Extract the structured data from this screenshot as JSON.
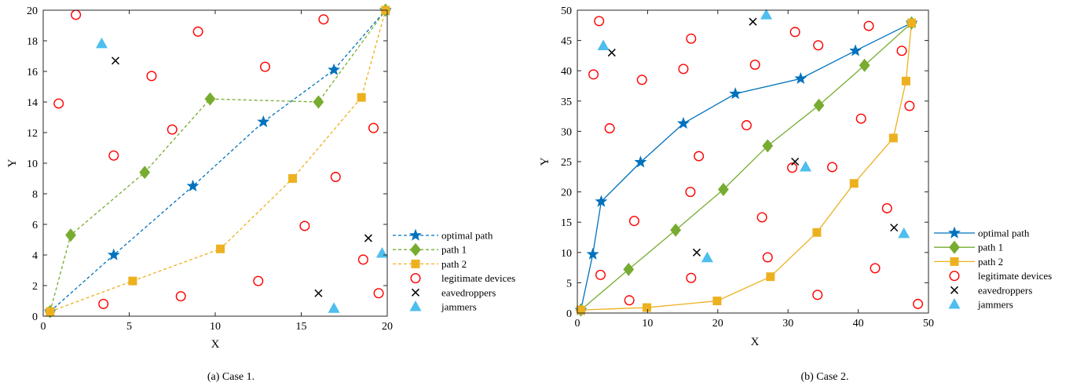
{
  "colors": {
    "optimal": "#0072BD",
    "path1": "#77AC30",
    "path2": "#EDB120",
    "legit": "#FF0000",
    "eaves": "#000000",
    "jammer": "#4DBEEE"
  },
  "chart_data": [
    {
      "type": "scatter",
      "caption": "(a) Case 1.",
      "xlabel": "X",
      "ylabel": "Y",
      "xlim": [
        0,
        20
      ],
      "ylim": [
        0,
        20
      ],
      "xticks": [
        0,
        5,
        10,
        15,
        20
      ],
      "yticks": [
        0,
        2,
        4,
        6,
        8,
        10,
        12,
        14,
        16,
        18,
        20
      ],
      "grid": false,
      "legend_position": "bottom-right, outside",
      "line_style": "dashed paths",
      "series": [
        {
          "name": "optimal path",
          "marker": "star",
          "x": [
            0.4,
            4.1,
            8.7,
            12.8,
            16.9,
            19.9
          ],
          "y": [
            0.3,
            4.0,
            8.5,
            12.7,
            16.1,
            20.0
          ]
        },
        {
          "name": "path 1",
          "marker": "diamond",
          "x": [
            0.4,
            1.6,
            5.9,
            9.7,
            16.0,
            19.9
          ],
          "y": [
            0.3,
            5.3,
            9.4,
            14.2,
            14.0,
            20.0
          ]
        },
        {
          "name": "path 2",
          "marker": "square",
          "x": [
            0.4,
            5.2,
            10.3,
            14.5,
            18.5,
            19.9
          ],
          "y": [
            0.3,
            2.3,
            4.4,
            9.0,
            14.3,
            20.0
          ]
        },
        {
          "name": "legitimate devices",
          "marker": "circle",
          "x": [
            0.9,
            1.9,
            3.5,
            4.1,
            6.3,
            7.5,
            8.0,
            9.0,
            12.5,
            12.9,
            15.2,
            16.3,
            17.0,
            18.6,
            19.2,
            19.5
          ],
          "y": [
            13.9,
            19.7,
            0.8,
            10.5,
            15.7,
            12.2,
            1.3,
            18.6,
            2.3,
            16.3,
            5.9,
            19.4,
            9.1,
            3.7,
            12.3,
            1.5
          ]
        },
        {
          "name": "eavedroppers",
          "marker": "x",
          "x": [
            4.2,
            16.0,
            18.9
          ],
          "y": [
            16.7,
            1.5,
            5.1
          ]
        },
        {
          "name": "jammers",
          "marker": "triangle",
          "x": [
            3.4,
            16.9,
            19.7
          ],
          "y": [
            17.8,
            0.5,
            4.1
          ]
        }
      ]
    },
    {
      "type": "scatter",
      "caption": "(b) Case 2.",
      "xlabel": "X",
      "ylabel": "Y",
      "xlim": [
        0,
        50
      ],
      "ylim": [
        0,
        50
      ],
      "xticks": [
        0,
        10,
        20,
        30,
        40,
        50
      ],
      "yticks": [
        0,
        5,
        10,
        15,
        20,
        25,
        30,
        35,
        40,
        45,
        50
      ],
      "grid": false,
      "legend_position": "bottom-right, outside",
      "line_style": "solid paths",
      "series": [
        {
          "name": "optimal path",
          "marker": "star",
          "x": [
            0.5,
            2.2,
            3.4,
            9.0,
            15.1,
            22.5,
            31.8,
            39.6,
            47.6
          ],
          "y": [
            0.5,
            9.7,
            18.4,
            24.9,
            31.3,
            36.2,
            38.7,
            43.3,
            47.9
          ]
        },
        {
          "name": "path 1",
          "marker": "diamond",
          "x": [
            0.5,
            7.3,
            14.0,
            20.8,
            27.1,
            34.4,
            40.9,
            47.6
          ],
          "y": [
            0.5,
            7.2,
            13.7,
            20.4,
            27.6,
            34.3,
            40.9,
            47.9
          ]
        },
        {
          "name": "path 2",
          "marker": "square",
          "x": [
            0.5,
            9.9,
            19.9,
            27.5,
            34.1,
            39.4,
            45.0,
            46.8,
            47.6
          ],
          "y": [
            0.5,
            0.9,
            2.0,
            6.0,
            13.3,
            21.4,
            28.9,
            38.3,
            47.9
          ]
        },
        {
          "name": "legitimate devices",
          "marker": "circle",
          "x": [
            3.1,
            2.3,
            4.6,
            9.2,
            3.3,
            8.1,
            7.4,
            15.1,
            16.2,
            17.3,
            16.1,
            16.2,
            24.1,
            25.3,
            26.3,
            27.1,
            31.0,
            30.6,
            34.3,
            36.3,
            34.2,
            40.4,
            41.5,
            44.1,
            46.2,
            47.3,
            42.4,
            48.5
          ],
          "y": [
            48.2,
            39.4,
            30.5,
            38.5,
            6.3,
            15.2,
            2.1,
            40.3,
            45.3,
            25.9,
            20.0,
            5.8,
            31.0,
            41.0,
            15.8,
            9.2,
            46.4,
            24.0,
            44.2,
            24.1,
            3.0,
            32.1,
            47.4,
            17.3,
            43.3,
            34.2,
            7.4,
            1.5
          ]
        },
        {
          "name": "eavedroppers",
          "marker": "x",
          "x": [
            4.9,
            25.0,
            31.0,
            17.0,
            45.1
          ],
          "y": [
            43.0,
            48.1,
            25.0,
            10.0,
            14.1
          ]
        },
        {
          "name": "jammers",
          "marker": "triangle",
          "x": [
            3.7,
            26.9,
            32.5,
            18.5,
            46.5
          ],
          "y": [
            44.1,
            49.2,
            24.1,
            9.1,
            13.1
          ]
        }
      ]
    }
  ]
}
